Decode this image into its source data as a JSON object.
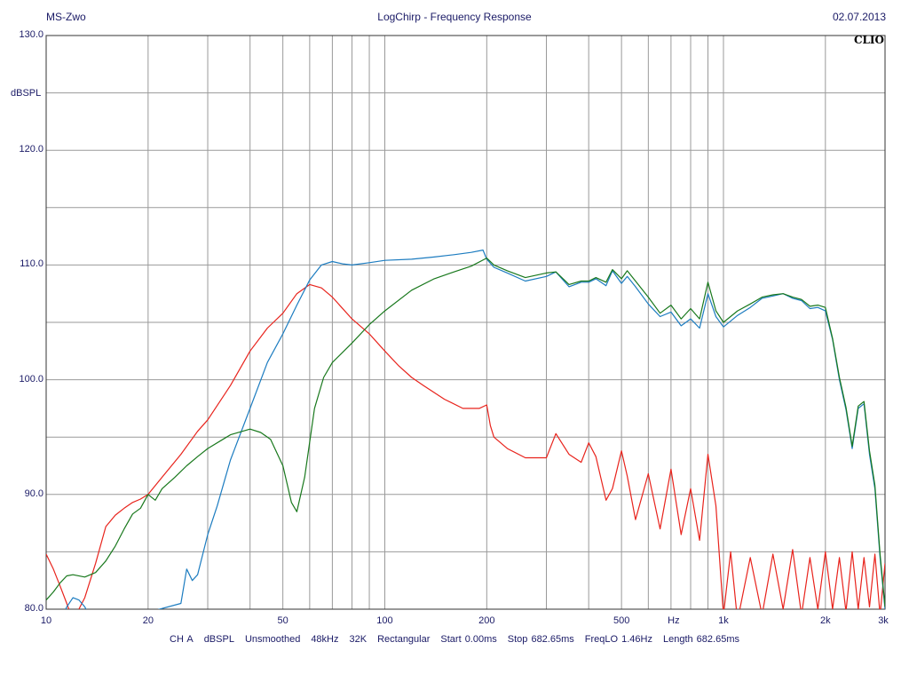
{
  "header": {
    "left": "MS-Zwo",
    "title": "LogChirp - Frequency Response",
    "date": "02.07.2013"
  },
  "brand": "CLIO",
  "footer": {
    "items": [
      "CH A",
      "dBSPL",
      "Unsmoothed",
      "48kHz",
      "32K",
      "Rectangular",
      "Start 0.00ms",
      "Stop 682.65ms",
      "FreqLO 1.46Hz",
      "Length 682.65ms"
    ]
  },
  "chart_data": {
    "type": "line",
    "xscale": "log",
    "xlim": [
      10,
      3000
    ],
    "ylim": [
      80,
      130
    ],
    "ylabel": "dBSPL",
    "xlabel": "Hz",
    "grid": true,
    "y_ticks": [
      "130.0",
      "120.0",
      "110.0",
      "100.0",
      "90.0",
      "80.0"
    ],
    "x_tick_labels": [
      {
        "f": 10,
        "label": "10"
      },
      {
        "f": 20,
        "label": "20"
      },
      {
        "f": 50,
        "label": "50"
      },
      {
        "f": 100,
        "label": "100"
      },
      {
        "f": 200,
        "label": "200"
      },
      {
        "f": 500,
        "label": "500"
      },
      {
        "f": 1000,
        "label": "1k"
      },
      {
        "f": 2000,
        "label": "2k"
      },
      {
        "f": 3000,
        "label": "3k"
      }
    ],
    "series": [
      {
        "color": "#e8231c",
        "x": [
          10,
          10.5,
          11,
          11.5,
          12,
          13,
          14,
          15,
          16,
          17,
          18,
          19,
          20,
          22,
          25,
          28,
          30,
          35,
          40,
          45,
          50,
          55,
          60,
          65,
          70,
          80,
          90,
          100,
          110,
          120,
          130,
          150,
          170,
          190,
          200,
          205,
          210,
          230,
          260,
          300,
          320,
          350,
          380,
          400,
          420,
          450,
          470,
          500,
          520,
          550,
          600,
          650,
          700,
          750,
          800,
          850,
          900,
          950,
          1000,
          1050,
          1100,
          1200,
          1300,
          1400,
          1500,
          1600,
          1700,
          1800,
          1900,
          2000,
          2100,
          2200,
          2300,
          2400,
          2500,
          2600,
          2700,
          2800,
          2900,
          3000
        ],
        "y": [
          84.8,
          83.5,
          82,
          80.5,
          79,
          81,
          84,
          87.2,
          88.2,
          88.8,
          89.3,
          89.6,
          90,
          91.5,
          93.5,
          95.5,
          96.5,
          99.5,
          102.5,
          104.5,
          105.8,
          107.5,
          108.3,
          108,
          107.2,
          105.3,
          104,
          102.5,
          101.2,
          100.2,
          99.5,
          98.3,
          97.5,
          97.5,
          97.8,
          96,
          95,
          94,
          93.2,
          93.2,
          95.3,
          93.5,
          92.8,
          94.5,
          93.3,
          89.5,
          90.5,
          93.8,
          91.6,
          87.8,
          91.8,
          87,
          92.2,
          86.5,
          90.5,
          86,
          93.5,
          89,
          79.5,
          85,
          79,
          84.5,
          79.5,
          84.8,
          80,
          85.2,
          79.5,
          84.5,
          80,
          85,
          80,
          84.5,
          79.8,
          85,
          80,
          84.5,
          80.2,
          84.8,
          79.5,
          84
        ]
      },
      {
        "color": "#1c7cc0",
        "x": [
          11,
          11.5,
          12,
          12.5,
          13,
          13.5,
          14,
          25,
          26,
          27,
          28,
          30,
          32,
          35,
          40,
          45,
          50,
          55,
          60,
          65,
          70,
          75,
          80,
          90,
          100,
          120,
          140,
          160,
          180,
          195,
          200,
          210,
          230,
          260,
          300,
          320,
          350,
          380,
          400,
          420,
          450,
          470,
          500,
          520,
          550,
          600,
          650,
          700,
          750,
          800,
          850,
          900,
          950,
          1000,
          1100,
          1200,
          1300,
          1400,
          1500,
          1600,
          1700,
          1800,
          1900,
          2000,
          2100,
          2200,
          2300,
          2400,
          2500,
          2600,
          2700,
          2800,
          2900,
          3000
        ],
        "y": [
          79,
          80.2,
          81,
          80.8,
          80.2,
          79.3,
          78.5,
          80.5,
          83.5,
          82.5,
          83,
          86.5,
          89,
          93,
          97.5,
          101.5,
          104,
          106.5,
          108.7,
          110,
          110.3,
          110.1,
          110,
          110.2,
          110.4,
          110.5,
          110.7,
          110.9,
          111.1,
          111.3,
          110.5,
          109.8,
          109.3,
          108.6,
          109,
          109.4,
          108.1,
          108.5,
          108.5,
          108.8,
          108.2,
          109.5,
          108.4,
          109,
          108.1,
          106.6,
          105.5,
          105.9,
          104.7,
          105.3,
          104.5,
          107.5,
          105.5,
          104.6,
          105.6,
          106.3,
          107.1,
          107.3,
          107.5,
          107.1,
          106.9,
          106.2,
          106.3,
          106,
          103.5,
          100,
          97.4,
          94,
          97.5,
          97.9,
          93.5,
          90.5,
          84.5,
          80
        ]
      },
      {
        "color": "#18781c",
        "x": [
          10,
          10.5,
          11,
          11.5,
          12,
          13,
          14,
          15,
          16,
          17,
          18,
          19,
          20,
          21,
          22,
          24,
          26,
          28,
          30,
          35,
          40,
          43,
          46,
          50,
          53,
          55,
          58,
          62,
          66,
          70,
          80,
          90,
          100,
          120,
          140,
          160,
          180,
          200,
          210,
          230,
          260,
          300,
          320,
          350,
          380,
          400,
          420,
          450,
          470,
          500,
          520,
          550,
          600,
          650,
          700,
          750,
          800,
          850,
          900,
          950,
          1000,
          1100,
          1200,
          1300,
          1400,
          1500,
          1600,
          1700,
          1800,
          1900,
          2000,
          2100,
          2200,
          2300,
          2400,
          2500,
          2600,
          2700,
          2800,
          2900,
          3000
        ],
        "y": [
          80.8,
          81.5,
          82.3,
          82.9,
          83,
          82.8,
          83.2,
          84.2,
          85.5,
          87,
          88.3,
          88.8,
          90,
          89.5,
          90.5,
          91.5,
          92.5,
          93.3,
          94,
          95.2,
          95.7,
          95.4,
          94.8,
          92.5,
          89.3,
          88.5,
          91.5,
          97.5,
          100.2,
          101.5,
          103.2,
          104.8,
          106,
          107.8,
          108.8,
          109.4,
          109.9,
          110.6,
          110,
          109.5,
          108.9,
          109.3,
          109.4,
          108.3,
          108.6,
          108.6,
          108.9,
          108.5,
          109.6,
          108.8,
          109.5,
          108.6,
          107.2,
          105.8,
          106.5,
          105.3,
          106.2,
          105.3,
          108.5,
          106,
          105,
          106,
          106.6,
          107.2,
          107.4,
          107.5,
          107.2,
          107,
          106.4,
          106.5,
          106.3,
          103.6,
          100.2,
          97.6,
          94.2,
          97.7,
          98.1,
          93.8,
          90.8,
          84.8,
          80.2
        ]
      }
    ]
  }
}
